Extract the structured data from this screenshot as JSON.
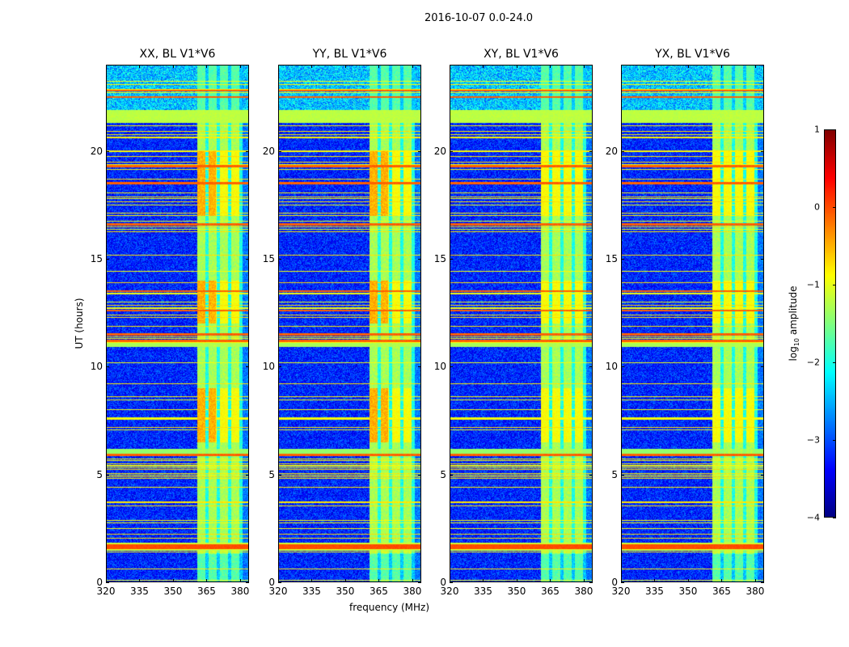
{
  "chart_data": {
    "type": "heatmap",
    "suptitle": "2016-10-07 0.0-24.0",
    "xlabel": "frequency (MHz)",
    "ylabel": "UT (hours)",
    "xlim": [
      320,
      384
    ],
    "ylim": [
      0,
      24
    ],
    "xticks": [
      320,
      335,
      350,
      365,
      380
    ],
    "yticks": [
      0,
      5,
      10,
      15,
      20
    ],
    "panels": [
      {
        "title": "XX, BL V1*V6",
        "pol": "XX"
      },
      {
        "title": "YY, BL V1*V6",
        "pol": "YY"
      },
      {
        "title": "XY, BL V1*V6",
        "pol": "XY"
      },
      {
        "title": "YX, BL V1*V6",
        "pol": "YX"
      }
    ],
    "colorbar": {
      "label_prefix": "log",
      "label_sub": "10",
      "label_suffix": " amplitude",
      "range": [
        -4,
        1
      ],
      "ticks": [
        1,
        0,
        -1,
        -2,
        -3,
        -4
      ],
      "colormap": "jet"
    },
    "background_level": -3.2,
    "rfi_band_mhz": [
      361,
      381
    ],
    "bright_intervals_hours": [
      [
        6.5,
        9
      ],
      [
        12,
        14
      ],
      [
        17,
        20
      ]
    ],
    "strong_rows_hours": [
      1.5,
      1.6,
      1.7,
      5.9,
      11.2,
      11.5,
      12.6,
      13.5,
      16.6,
      18.5,
      19.3,
      22.5,
      22.8
    ]
  }
}
